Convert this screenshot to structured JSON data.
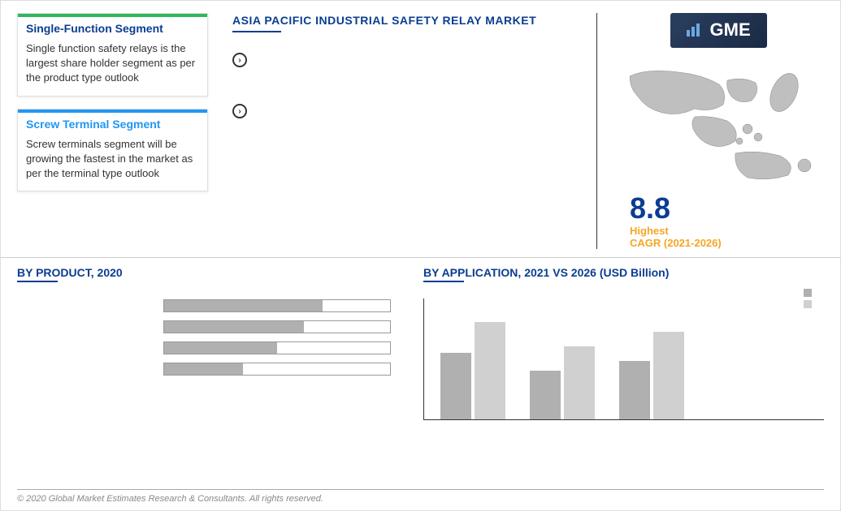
{
  "colors": {
    "primary_blue": "#0b3d91",
    "green_accent": "#2eb85c",
    "blue_accent": "#2196f3",
    "orange": "#f5a623",
    "bar_gray": "#b0b0b0",
    "bar_dark": "#555555",
    "bar_light": "#d0d0d0",
    "border_gray": "#999999"
  },
  "segments": [
    {
      "accent": "#2eb85c",
      "title_color": "#0b3d91",
      "title": "Single-Function Segment",
      "text": "Single function safety relays is the largest share holder segment as per the product type outlook"
    },
    {
      "accent": "#2196f3",
      "title_color": "#2196f3",
      "title": "Screw Terminal Segment",
      "text": "Screw terminals segment will be growing the fastest in the market as per the terminal type outlook"
    }
  ],
  "header": {
    "title": "ASIA PACIFIC INDUSTRIAL SAFETY RELAY MARKET",
    "logo_text": "GME"
  },
  "bullets": [
    {
      "text": ""
    },
    {
      "text": ""
    }
  ],
  "cagr": {
    "value": "8.8",
    "label1": "Highest",
    "label2": "CAGR (2021-2026)"
  },
  "product_chart": {
    "title": "BY PRODUCT, 2020",
    "bars": [
      {
        "label": "",
        "value": 70,
        "max": 100
      },
      {
        "label": "",
        "value": 62,
        "max": 100
      },
      {
        "label": "",
        "value": 50,
        "max": 100
      },
      {
        "label": "",
        "value": 35,
        "max": 100
      }
    ],
    "bar_color": "#b0b0b0",
    "border_color": "#999999"
  },
  "application_chart": {
    "title": "BY APPLICATION,  2021 VS 2026 (USD Billion)",
    "max": 100,
    "groups": [
      {
        "label": "",
        "v2021": 55,
        "v2026": 80
      },
      {
        "label": "",
        "v2021": 40,
        "v2026": 60
      },
      {
        "label": "",
        "v2021": 48,
        "v2026": 72
      }
    ],
    "colors": {
      "v2021": "#b0b0b0",
      "v2026": "#d0d0d0"
    },
    "legend": [
      {
        "label": "",
        "color": "#b0b0b0"
      },
      {
        "label": "",
        "color": "#d0d0d0"
      }
    ]
  },
  "footer": "© 2020 Global Market Estimates Research & Consultants. All rights reserved."
}
